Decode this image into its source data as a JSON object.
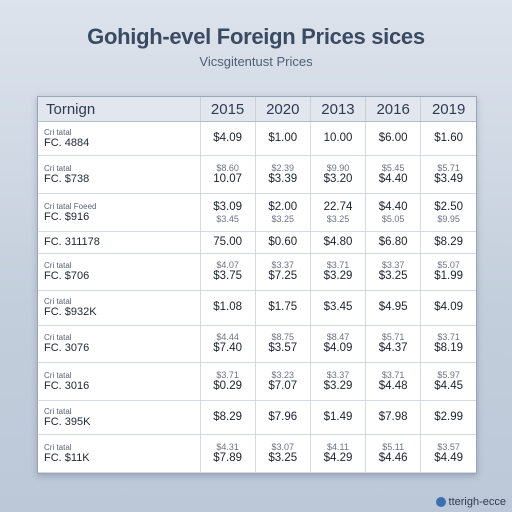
{
  "chart_data": {
    "type": "table",
    "title": "Gohigh-evel Foreign Prices sices",
    "subtitle": "Vicsgitentust Prices",
    "header_label": "Tornign",
    "columns": [
      "2015",
      "2020",
      "2013",
      "2016",
      "2019"
    ],
    "rows": [
      {
        "top": "Cri tatal",
        "label": "FC. 4884",
        "small": [
          "",
          "",
          "",
          "",
          ""
        ],
        "values": [
          "$4.09",
          "$1.00",
          "10.00",
          "$6.00",
          "$1.60"
        ]
      },
      {
        "top": "Cri tatal",
        "label": "FC. $738",
        "small": [
          "$8.60",
          "$2.39",
          "$9.90",
          "$5.45",
          "$5.71"
        ],
        "values": [
          "10.07",
          "$3.39",
          "$3.20",
          "$4.40",
          "$3.49"
        ]
      },
      {
        "top": "Cri tatal Foeed",
        "label": "FC. $916",
        "small": [
          "",
          "",
          "",
          "",
          ""
        ],
        "values": [
          "$3.09",
          "$2.00",
          "22.74",
          "$4.40",
          "$2.50"
        ],
        "values2": [
          "$3.45",
          "$3.25",
          "$3.25",
          "$5.05",
          "$9.95"
        ]
      },
      {
        "top": "",
        "label": "FC. 311178",
        "small": [
          "",
          "",
          "",
          "",
          ""
        ],
        "values": [
          "75.00",
          "$0.60",
          "$4.80",
          "$6.80",
          "$8.29"
        ]
      },
      {
        "top": "Cri tatal",
        "label": "FC. $706",
        "small": [
          "$4.07",
          "$3.37",
          "$3.71",
          "$3.37",
          "$5.07"
        ],
        "values": [
          "$3.75",
          "$7.25",
          "$3.29",
          "$3.25",
          "$1.99"
        ]
      },
      {
        "top": "Cri tatal",
        "label": "FC. $932K",
        "small": [
          "",
          "",
          "",
          "",
          ""
        ],
        "values": [
          "$1.08",
          "$1.75",
          "$3.45",
          "$4.95",
          "$4.09"
        ]
      },
      {
        "top": "Cri tatal",
        "label": "FC. 3076",
        "small": [
          "$4.44",
          "$8.75",
          "$8.47",
          "$5.71",
          "$3.71"
        ],
        "values": [
          "$7.40",
          "$3.57",
          "$4.09",
          "$4.37",
          "$8.19"
        ]
      },
      {
        "top": "Cri tatal",
        "label": "FC. 3016",
        "small": [
          "$3.71",
          "$3.23",
          "$3.37",
          "$3.71",
          "$5.97"
        ],
        "values": [
          "$0.29",
          "$7.07",
          "$3.29",
          "$4.48",
          "$4.45"
        ]
      },
      {
        "top": "Cri tatal",
        "label": "FC. 395K",
        "small": [
          "",
          "",
          "",
          "",
          ""
        ],
        "values": [
          "$8.29",
          "$7.96",
          "$1.49",
          "$7.98",
          "$2.99"
        ]
      },
      {
        "top": "Cri tatal",
        "label": "FC. $11K",
        "small": [
          "$4.31",
          "$3.07",
          "$4.11",
          "$5.11",
          "$3.57"
        ],
        "values": [
          "$7.89",
          "$3.25",
          "$4.29",
          "$4.46",
          "$4.49"
        ]
      }
    ]
  },
  "brand": {
    "text": "tterigh-ecce"
  },
  "colors": {
    "background": "#c9d3e0",
    "header_bg": "#e2e6ee",
    "title": "#3a4a63"
  }
}
